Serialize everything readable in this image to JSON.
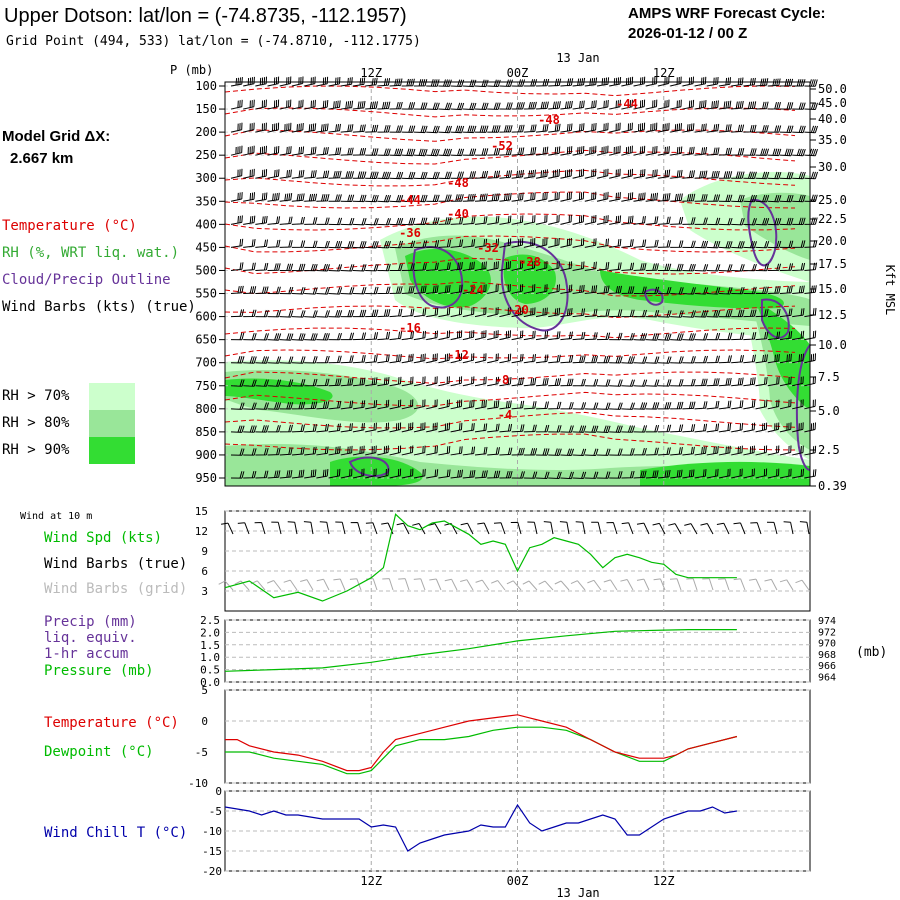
{
  "header": {
    "title": "Upper Dotson:  lat/lon = (-74.8735, -112.1957)",
    "grid_point": "Grid Point (494, 533) lat/lon = (-74.8710, -112.1775)",
    "cycle_line1": "AMPS WRF Forecast Cycle:",
    "cycle_line2": "2026-01-12 / 00  Z"
  },
  "legend": {
    "model_grid_line1": "Model Grid ΔX:",
    "model_grid_line2": "2.667 km",
    "temperature": "Temperature (°C)",
    "rh": "RH (%, WRT liq. wat.)",
    "cloud": "Cloud/Precip Outline",
    "wind_barbs": "Wind Barbs (kts) (true)",
    "rh_levels": [
      {
        "label": "RH > 70%",
        "color": "#ccffcc"
      },
      {
        "label": "RH > 80%",
        "color": "#99e699"
      },
      {
        "label": "RH > 90%",
        "color": "#33dd33"
      }
    ]
  },
  "colors": {
    "temperature": "#dd0000",
    "rh_strong": "#33dd33",
    "cloud": "#663399",
    "dewpoint": "#00bb00",
    "windchill": "#0000aa",
    "grid": "#aaaaaa"
  },
  "time_axis": {
    "top_date": "13 Jan",
    "bottom_date": "13 Jan",
    "ticks": [
      "12Z",
      "00Z",
      "12Z"
    ]
  },
  "chart_data": [
    {
      "type": "heatmap",
      "name": "cross-section",
      "ylabel": "P (mb)",
      "right_label": "Kft MSL",
      "pressure_levels": [
        100,
        150,
        200,
        250,
        300,
        350,
        400,
        450,
        500,
        550,
        600,
        650,
        700,
        750,
        800,
        850,
        900,
        950
      ],
      "height_labels": [
        "50.0",
        "45.0",
        "40.0",
        "35.0",
        "30.0",
        "25.0",
        "22.5",
        "20.0",
        "17.5",
        "15.0",
        "12.5",
        "10.0",
        "7.5",
        "5.0",
        "2.5",
        "0.39"
      ],
      "temperature_labels": [
        "-44",
        "-48",
        "-52",
        "-48",
        "-44",
        "-40",
        "-36",
        "-32",
        "-28",
        "-24",
        "-20",
        "-16",
        "-12",
        "-8",
        "-4"
      ],
      "x_range_hours": [
        0,
        48
      ],
      "time_ticks_hours": [
        12,
        24,
        36
      ]
    },
    {
      "type": "line",
      "name": "wind-10m",
      "title": "Wind at 10 m",
      "labels": [
        "Wind Spd (kts)",
        "Wind Barbs (true)",
        "Wind Barbs (grid)"
      ],
      "ylim": [
        0,
        15
      ],
      "yticks": [
        3,
        6,
        9,
        12,
        15
      ],
      "x": [
        0,
        2,
        4,
        6,
        8,
        10,
        12,
        13,
        14,
        15,
        16,
        17,
        18,
        19,
        20,
        21,
        22,
        23,
        24,
        25,
        26,
        27,
        28,
        29,
        30,
        31,
        32,
        33,
        34,
        35,
        36,
        37,
        38,
        39,
        40,
        41,
        42
      ],
      "values": [
        3.5,
        4.5,
        2,
        2.8,
        1.5,
        3,
        5,
        6.5,
        14.5,
        12.8,
        12.2,
        13.2,
        13.5,
        12.5,
        11.5,
        10,
        10.5,
        10,
        6,
        9.5,
        10,
        11,
        10.5,
        10,
        8.5,
        6.5,
        8,
        8.5,
        8,
        7.3,
        7,
        5.5,
        5,
        5,
        5,
        5,
        5
      ]
    },
    {
      "type": "line",
      "name": "precip-pressure",
      "labels": [
        "Precip (mm)",
        "liq. equiv.",
        "1-hr accum",
        "Pressure (mb)"
      ],
      "precip_ylim": [
        0,
        2.5
      ],
      "precip_yticks": [
        "0.0",
        "0.5",
        "1.0",
        "1.5",
        "2.0",
        "2.5"
      ],
      "pressure_ylim": [
        963,
        974
      ],
      "pressure_yticks": [
        964,
        966,
        968,
        970,
        972,
        974
      ],
      "ylabel_right": "(mb)",
      "x": [
        0,
        4,
        8,
        12,
        16,
        20,
        24,
        28,
        32,
        36,
        38,
        40,
        42
      ],
      "pressure": [
        964.9,
        965.2,
        965.5,
        966.5,
        967.8,
        968.9,
        970.3,
        971.2,
        972,
        972.2,
        972.3,
        972.3,
        972.3
      ]
    },
    {
      "type": "line",
      "name": "temp-dewpoint",
      "labels": [
        "Temperature (°C)",
        "Dewpoint (°C)"
      ],
      "ylim": [
        -10,
        5
      ],
      "yticks": [
        "5",
        "0",
        "-5",
        "-10"
      ],
      "x": [
        0,
        1,
        2,
        4,
        6,
        8,
        10,
        11,
        12,
        13,
        14,
        16,
        18,
        20,
        22,
        24,
        25,
        26,
        28,
        30,
        32,
        34,
        36,
        37,
        38,
        40,
        42
      ],
      "series": [
        {
          "name": "Temperature",
          "values": [
            -3,
            -3,
            -4,
            -5,
            -5.5,
            -6.5,
            -8,
            -8,
            -7.5,
            -5,
            -3,
            -2,
            -1,
            0,
            0.5,
            1,
            0.5,
            0,
            -1,
            -3,
            -5,
            -6,
            -6,
            -5.5,
            -4.5,
            -3.5,
            -2.5
          ]
        },
        {
          "name": "Dewpoint",
          "values": [
            -5,
            -5,
            -5,
            -6,
            -6.5,
            -7,
            -8.5,
            -8.5,
            -8,
            -6,
            -4,
            -3,
            -3,
            -2.5,
            -1.5,
            -1,
            -1,
            -1,
            -1.5,
            -3,
            -5,
            -6.5,
            -6.5,
            -5.5,
            -4.5,
            -3.5,
            -2.5
          ]
        }
      ]
    },
    {
      "type": "line",
      "name": "wind-chill",
      "labels": [
        "Wind Chill T (°C)"
      ],
      "ylim": [
        -20,
        0
      ],
      "yticks": [
        "0",
        "-5",
        "-10",
        "-15",
        "-20"
      ],
      "x": [
        0,
        1,
        2,
        3,
        4,
        5,
        6,
        7,
        8,
        9,
        10,
        11,
        12,
        13,
        14,
        15,
        16,
        17,
        18,
        19,
        20,
        21,
        22,
        23,
        24,
        25,
        26,
        27,
        28,
        29,
        30,
        31,
        32,
        33,
        34,
        35,
        36,
        37,
        38,
        39,
        40,
        41,
        42
      ],
      "values": [
        -4,
        -4.5,
        -5,
        -6,
        -5,
        -6,
        -6,
        -6.5,
        -7,
        -7,
        -7,
        -7,
        -9,
        -8.5,
        -9,
        -15,
        -13,
        -12,
        -11,
        -10.5,
        -10,
        -8.5,
        -9,
        -9,
        -3.5,
        -8,
        -10,
        -9,
        -8,
        -8,
        -7,
        -6,
        -7,
        -11,
        -11,
        -9,
        -7,
        -6,
        -5,
        -5,
        -4,
        -5.5,
        -5
      ]
    }
  ]
}
